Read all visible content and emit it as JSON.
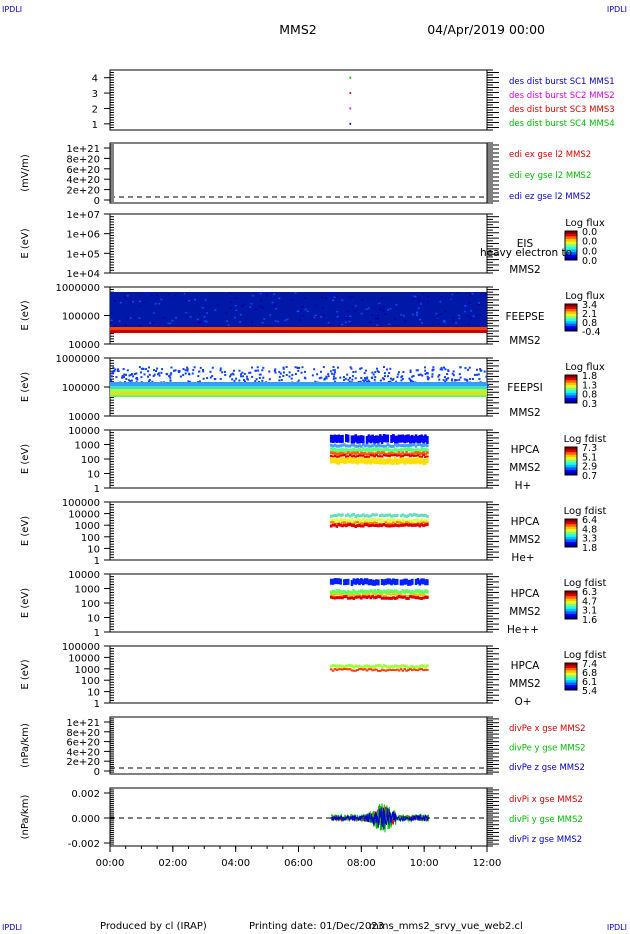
{
  "corner": {
    "tl": "IPDLI",
    "tr": "IPDLI",
    "bl": "IPDLI",
    "br": "IPDLI"
  },
  "header": {
    "spacecraft": "MMS2",
    "datetime": "04/Apr/2019 00:00"
  },
  "footer": {
    "producer": "Produced by cl (IRAP)",
    "printing": "Printing date: 01/Dec/2023",
    "file": "mms_mms2_srvy_vue_web2.cl"
  },
  "colors": {
    "c1": "#0000cc",
    "c2": "#dd00dd",
    "c3": "#dd0000",
    "c4": "#00bb00",
    "bg": "#0018a8"
  },
  "chart_data": [
    {
      "type": "scatter",
      "id": "p1",
      "yticks": [
        "1",
        "2",
        "3",
        "4"
      ],
      "ylim": [
        0.6,
        4.5
      ],
      "points": [
        {
          "x": 7.65,
          "y": 4,
          "series": "C4"
        },
        {
          "x": 7.65,
          "y": 3,
          "series": "C3"
        },
        {
          "x": 7.65,
          "y": 2,
          "series": "C2"
        },
        {
          "x": 7.65,
          "y": 1,
          "series": "C1"
        }
      ],
      "legend": [
        "des dist burst SC1 MMS1",
        "des dist burst SC2 MMS2",
        "des dist burst SC3 MMS3",
        "des dist burst SC4 MMS4"
      ]
    },
    {
      "type": "line",
      "id": "p2",
      "ylabel": "(mV/m)",
      "yticks": [
        "1e+21",
        "8e+20",
        "6e+20",
        "4e+20",
        "2e+20",
        "0"
      ],
      "legend": [
        "edi ex gse l2 MMS2",
        "edi ey gse l2 MMS2",
        "edi ez gse l2 MMS2"
      ]
    },
    {
      "type": "heatmap",
      "id": "p3",
      "ylabel": "E (eV)",
      "yticks": [
        "1e+07",
        "1e+06",
        "1e+05",
        "1e+04"
      ],
      "labels": [
        "EIS",
        "MMS2"
      ],
      "overlay": "heavy electron to",
      "cbar_title": "Log flux",
      "cbar_ticks": [
        "0.0",
        "0.0",
        "0.0",
        "0.0"
      ]
    },
    {
      "type": "heatmap",
      "id": "p4",
      "ylabel": "E (eV)",
      "yticks": [
        "1000000",
        "100000",
        "10000"
      ],
      "labels": [
        "FEEPSE",
        "MMS2"
      ],
      "cbar_title": "Log flux",
      "cbar_ticks": [
        "3.4",
        "2.1",
        "0.8",
        "-0.4"
      ]
    },
    {
      "type": "heatmap",
      "id": "p5",
      "ylabel": "E (eV)",
      "yticks": [
        "1000000",
        "100000",
        "10000"
      ],
      "labels": [
        "FEEPSI",
        "MMS2"
      ],
      "cbar_title": "Log flux",
      "cbar_ticks": [
        "1.8",
        "1.3",
        "0.8",
        "0.3"
      ]
    },
    {
      "type": "heatmap",
      "id": "p6",
      "ylabel": "E (eV)",
      "yticks": [
        "10000",
        "1000",
        "100",
        "10",
        "1"
      ],
      "labels": [
        "HPCA",
        "MMS2",
        "H+"
      ],
      "cbar_title": "Log fdist",
      "cbar_ticks": [
        "7.3",
        "5.1",
        "2.9",
        "0.7"
      ]
    },
    {
      "type": "heatmap",
      "id": "p7",
      "ylabel": "E (eV)",
      "yticks": [
        "100000",
        "10000",
        "1000",
        "100",
        "10",
        "1"
      ],
      "labels": [
        "HPCA",
        "MMS2",
        "He+"
      ],
      "cbar_title": "Log fdist",
      "cbar_ticks": [
        "6.4",
        "4.8",
        "3.3",
        "1.8"
      ]
    },
    {
      "type": "heatmap",
      "id": "p8",
      "ylabel": "E (eV)",
      "yticks": [
        "10000",
        "1000",
        "100",
        "10",
        "1"
      ],
      "labels": [
        "HPCA",
        "MMS2",
        "He++"
      ],
      "cbar_title": "Log fdist",
      "cbar_ticks": [
        "6.3",
        "4.7",
        "3.1",
        "1.6"
      ]
    },
    {
      "type": "heatmap",
      "id": "p9",
      "ylabel": "E (eV)",
      "yticks": [
        "100000",
        "10000",
        "1000",
        "100",
        "10",
        "1"
      ],
      "labels": [
        "HPCA",
        "MMS2",
        "O+"
      ],
      "cbar_title": "Log fdist",
      "cbar_ticks": [
        "7.4",
        "6.8",
        "6.1",
        "5.4"
      ]
    },
    {
      "type": "line",
      "id": "p10",
      "ylabel": "(nPa/km)",
      "yticks": [
        "1e+21",
        "8e+20",
        "6e+20",
        "4e+20",
        "2e+20",
        "0"
      ],
      "legend": [
        "divPe x gse MMS2",
        "divPe y gse MMS2",
        "divPe z gse MMS2"
      ]
    },
    {
      "type": "line",
      "id": "p11",
      "ylabel": "(nPa/km)",
      "yticks": [
        "0.002",
        "0.000",
        "-0.002"
      ],
      "ylim": [
        -0.0034,
        0.0034
      ],
      "legend": [
        "divPi x gse MMS2",
        "divPi y gse MMS2",
        "divPi z gse MMS2"
      ]
    }
  ],
  "xaxis": {
    "ticks": [
      "00:00",
      "02:00",
      "04:00",
      "06:00",
      "08:00",
      "10:00",
      "12:00"
    ],
    "range_hours": [
      0,
      12
    ]
  }
}
